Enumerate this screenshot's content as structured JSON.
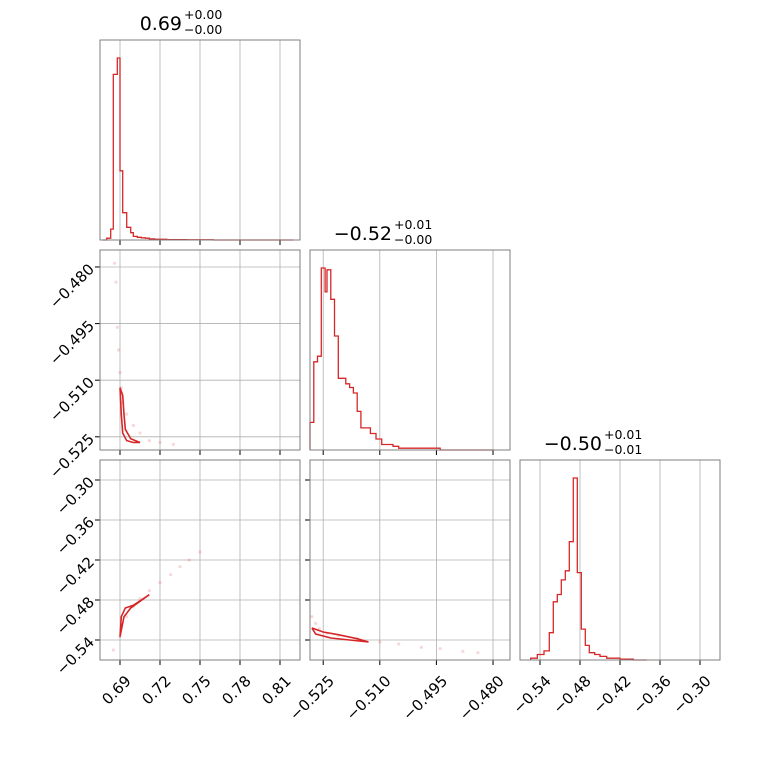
{
  "chart_data": {
    "type": "corner",
    "color": "#d62728",
    "params": [
      {
        "range": [
          0.675,
          0.825
        ],
        "ticks": [
          "0.69",
          "0.72",
          "0.75",
          "0.78",
          "0.81"
        ],
        "tick_values": [
          0.69,
          0.72,
          0.75,
          0.78,
          0.81
        ],
        "title": {
          "value": "0.69",
          "plus": "+0.00",
          "minus": "−0.00"
        }
      },
      {
        "range": [
          -0.5285,
          -0.4755
        ],
        "ticks": [
          "−0.525",
          "−0.510",
          "−0.495",
          "−0.480"
        ],
        "tick_values": [
          -0.525,
          -0.51,
          -0.495,
          -0.48
        ],
        "title": {
          "value": "−0.52",
          "plus": "+0.01",
          "minus": "−0.00"
        }
      },
      {
        "range": [
          -0.57,
          -0.27
        ],
        "ticks": [
          "−0.54",
          "−0.48",
          "−0.42",
          "−0.36",
          "−0.30"
        ],
        "tick_values": [
          -0.54,
          -0.48,
          -0.42,
          -0.36,
          -0.3
        ],
        "title": {
          "value": "−0.50",
          "plus": "+0.01",
          "minus": "−0.01"
        }
      }
    ],
    "histograms": [
      {
        "param": 0,
        "edges": [
          0.677,
          0.68,
          0.683,
          0.685,
          0.688,
          0.69,
          0.692,
          0.695,
          0.698,
          0.7,
          0.703,
          0.706,
          0.709,
          0.712,
          0.716,
          0.72,
          0.725,
          0.73,
          0.74,
          0.75,
          0.76,
          0.78,
          0.8,
          0.82
        ],
        "counts": [
          0,
          1,
          6,
          91,
          100,
          38,
          15,
          7,
          4,
          2,
          1.5,
          1.2,
          1,
          0.6,
          0.4,
          0.4,
          0.2,
          0.2,
          0.1,
          0.1,
          0,
          0,
          0
        ]
      },
      {
        "param": 1,
        "edges": [
          -0.5285,
          -0.5275,
          -0.5265,
          -0.5255,
          -0.5245,
          -0.524,
          -0.523,
          -0.522,
          -0.521,
          -0.519,
          -0.518,
          -0.517,
          -0.516,
          -0.515,
          -0.514,
          -0.5125,
          -0.511,
          -0.5095,
          -0.508,
          -0.5065,
          -0.505,
          -0.503,
          -0.5,
          -0.497,
          -0.494,
          -0.49,
          -0.486,
          -0.48
        ],
        "counts": [
          15,
          48,
          51,
          99,
          86,
          98,
          82,
          62,
          39,
          36,
          34,
          31,
          21,
          12,
          12,
          9,
          6,
          3,
          3,
          2,
          1,
          1,
          1,
          1,
          0,
          0,
          0
        ]
      },
      {
        "param": 2,
        "edges": [
          -0.554,
          -0.544,
          -0.534,
          -0.526,
          -0.52,
          -0.514,
          -0.508,
          -0.502,
          -0.496,
          -0.49,
          -0.484,
          -0.478,
          -0.472,
          -0.466,
          -0.458,
          -0.45,
          -0.44,
          -0.43,
          -0.42,
          -0.41,
          -0.4,
          -0.38
        ],
        "counts": [
          1,
          3,
          5,
          15,
          32,
          36,
          44,
          49,
          65,
          100,
          48,
          17,
          8,
          4,
          3,
          2,
          1,
          1,
          0.5,
          0.5,
          0
        ]
      }
    ],
    "scatter_pairs": [
      {
        "x": 0,
        "y": 1,
        "points": [
          [
            0.686,
            -0.479
          ],
          [
            0.687,
            -0.484
          ],
          [
            0.688,
            -0.496
          ],
          [
            0.689,
            -0.502
          ],
          [
            0.69,
            -0.508
          ],
          [
            0.691,
            -0.512
          ],
          [
            0.692,
            -0.516
          ],
          [
            0.695,
            -0.519
          ],
          [
            0.7,
            -0.522
          ],
          [
            0.705,
            -0.524
          ],
          [
            0.712,
            -0.526
          ],
          [
            0.72,
            -0.5265
          ],
          [
            0.73,
            -0.527
          ]
        ],
        "contour": [
          [
            0.69,
            -0.512
          ],
          [
            0.691,
            -0.519
          ],
          [
            0.692,
            -0.524
          ],
          [
            0.695,
            -0.526
          ],
          [
            0.7,
            -0.5265
          ],
          [
            0.705,
            -0.5265
          ],
          [
            0.698,
            -0.5255
          ],
          [
            0.694,
            -0.523
          ],
          [
            0.693,
            -0.519
          ],
          [
            0.692,
            -0.514
          ],
          [
            0.69,
            -0.512
          ]
        ]
      },
      {
        "x": 0,
        "y": 2,
        "points": [
          [
            0.685,
            -0.555
          ],
          [
            0.69,
            -0.535
          ],
          [
            0.695,
            -0.505
          ],
          [
            0.7,
            -0.49
          ],
          [
            0.705,
            -0.478
          ],
          [
            0.712,
            -0.466
          ],
          [
            0.72,
            -0.454
          ],
          [
            0.728,
            -0.442
          ],
          [
            0.735,
            -0.43
          ],
          [
            0.742,
            -0.42
          ],
          [
            0.75,
            -0.408
          ]
        ],
        "contour": [
          [
            0.69,
            -0.535
          ],
          [
            0.691,
            -0.505
          ],
          [
            0.694,
            -0.492
          ],
          [
            0.7,
            -0.488
          ],
          [
            0.706,
            -0.48
          ],
          [
            0.712,
            -0.472
          ],
          [
            0.705,
            -0.482
          ],
          [
            0.698,
            -0.492
          ],
          [
            0.693,
            -0.505
          ],
          [
            0.69,
            -0.535
          ]
        ]
      },
      {
        "x": 1,
        "y": 2,
        "points": [
          [
            -0.528,
            -0.505
          ],
          [
            -0.527,
            -0.515
          ],
          [
            -0.526,
            -0.523
          ],
          [
            -0.524,
            -0.53
          ],
          [
            -0.521,
            -0.533
          ],
          [
            -0.516,
            -0.538
          ],
          [
            -0.51,
            -0.543
          ],
          [
            -0.505,
            -0.546
          ],
          [
            -0.499,
            -0.551
          ],
          [
            -0.494,
            -0.553
          ],
          [
            -0.488,
            -0.557
          ],
          [
            -0.484,
            -0.559
          ]
        ],
        "contour": [
          [
            -0.528,
            -0.522
          ],
          [
            -0.527,
            -0.531
          ],
          [
            -0.523,
            -0.537
          ],
          [
            -0.518,
            -0.54
          ],
          [
            -0.513,
            -0.543
          ],
          [
            -0.516,
            -0.538
          ],
          [
            -0.521,
            -0.532
          ],
          [
            -0.525,
            -0.528
          ],
          [
            -0.528,
            -0.522
          ]
        ]
      }
    ]
  }
}
